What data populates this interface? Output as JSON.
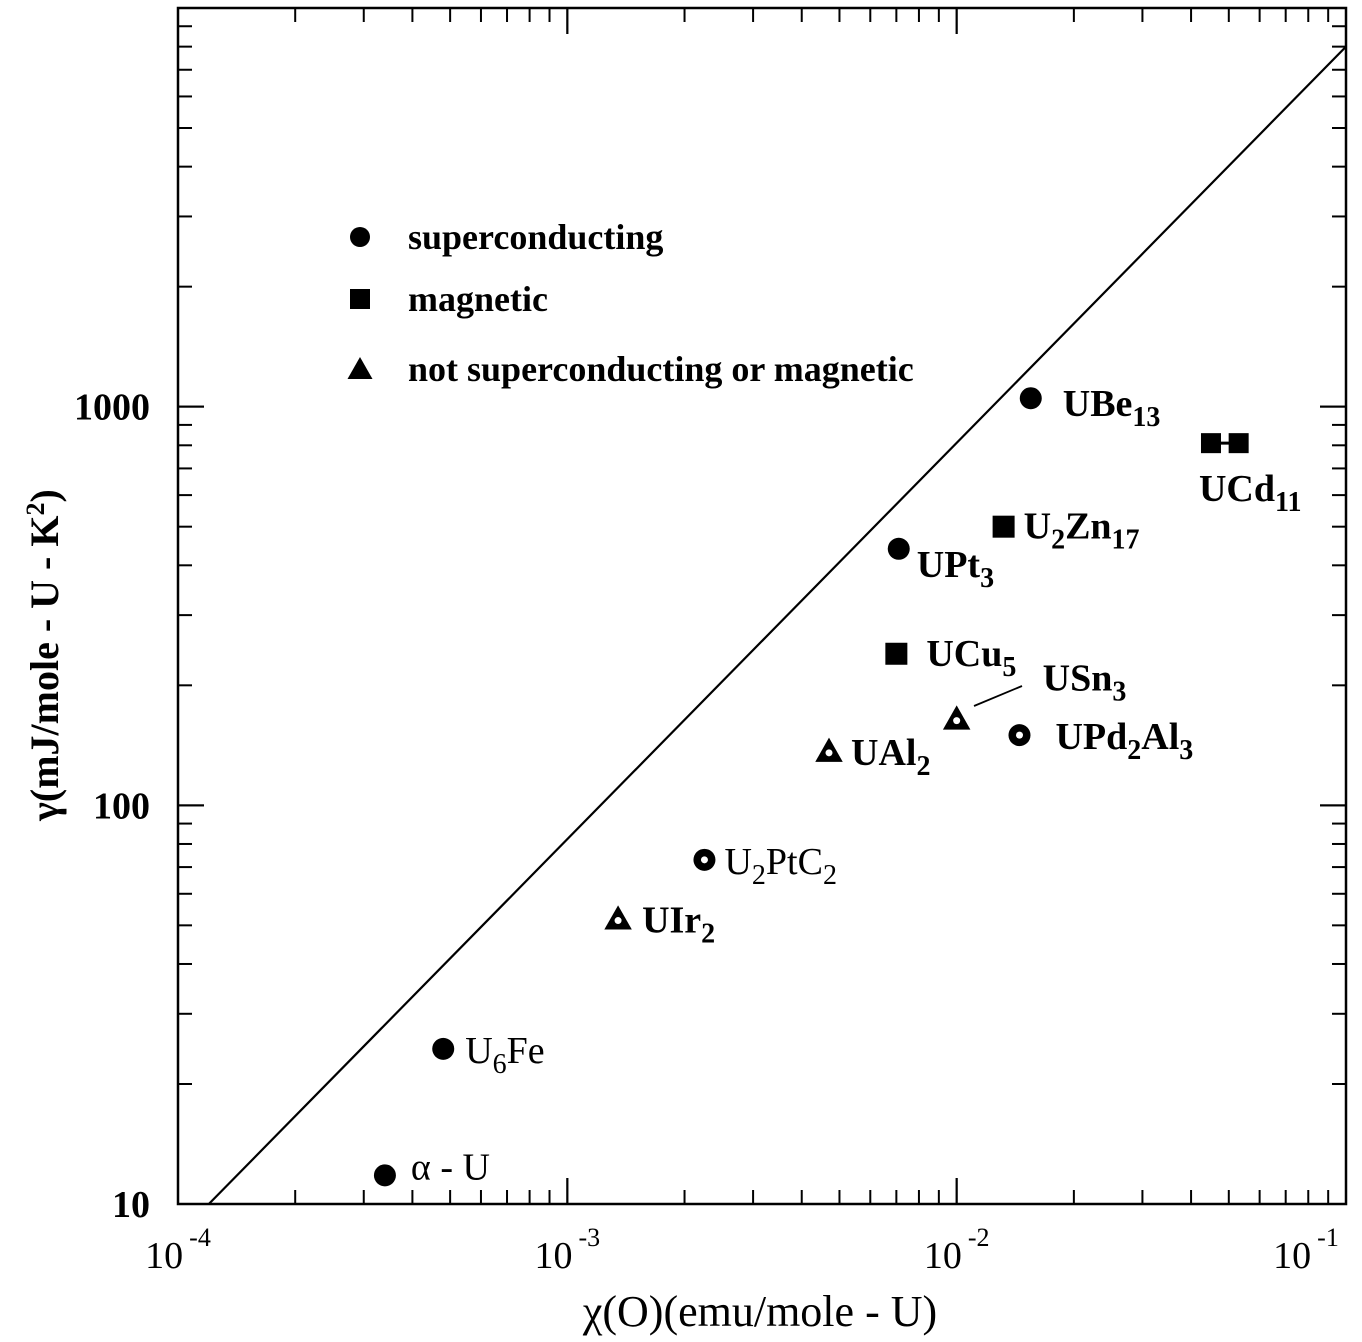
{
  "chart_data": {
    "type": "scatter",
    "title": "",
    "xlabel": "χ(O)(emu/mole - U)",
    "ylabel": "γ(mJ/mole - U - K²)",
    "xscale": "log",
    "yscale": "log",
    "xlim": [
      0.0001,
      0.1
    ],
    "ylim": [
      10,
      10000
    ],
    "x_tick_labels": [
      {
        "value": 0.0001,
        "base": "10",
        "exp": "-4"
      },
      {
        "value": 0.001,
        "base": "10",
        "exp": "-3"
      },
      {
        "value": 0.01,
        "base": "10",
        "exp": "-2"
      },
      {
        "value": 0.1,
        "base": "10",
        "exp": "-1"
      }
    ],
    "y_tick_labels": [
      {
        "value": 10,
        "label": "10"
      },
      {
        "value": 100,
        "label": "100"
      },
      {
        "value": 1000,
        "label": "1000"
      }
    ],
    "grid": false,
    "legend_position": "upper-left",
    "legend": [
      {
        "marker": "circle",
        "label": "superconducting"
      },
      {
        "marker": "square",
        "label": "magnetic"
      },
      {
        "marker": "triangle",
        "label": "not superconducting or magnetic"
      }
    ],
    "reference_line": {
      "x": [
        0.00012,
        0.1
      ],
      "y": [
        10,
        8000
      ]
    },
    "points": [
      {
        "name": "α - U",
        "main": "α - U",
        "sub": "",
        "tail": "",
        "sub2": "",
        "x": 0.00034,
        "y": 11.8,
        "marker": "circle"
      },
      {
        "name": "U6Fe",
        "main": "U",
        "sub": "6",
        "tail": "Fe",
        "sub2": "",
        "x": 0.00048,
        "y": 24.5,
        "marker": "circle"
      },
      {
        "name": "UIr2",
        "main": "UIr",
        "sub": "2",
        "tail": "",
        "sub2": "",
        "x": 0.00135,
        "y": 52,
        "marker": "triangle"
      },
      {
        "name": "U2PtC2",
        "main": "U",
        "sub": "2",
        "tail": "PtC",
        "sub2": "2",
        "x": 0.00225,
        "y": 73,
        "marker": "circle"
      },
      {
        "name": "UAl2",
        "main": "UAl",
        "sub": "2",
        "tail": "",
        "sub2": "",
        "x": 0.0047,
        "y": 137,
        "marker": "triangle"
      },
      {
        "name": "USn3",
        "main": "USn",
        "sub": "3",
        "tail": "",
        "sub2": "",
        "x": 0.01,
        "y": 165,
        "marker": "triangle"
      },
      {
        "name": "UCu5",
        "main": "UCu",
        "sub": "5",
        "tail": "",
        "sub2": "",
        "x": 0.007,
        "y": 240,
        "marker": "square"
      },
      {
        "name": "UPd2Al3",
        "main": "UPd",
        "sub": "2",
        "tail": "Al",
        "sub2": "3",
        "x": 0.0145,
        "y": 150,
        "marker": "circle"
      },
      {
        "name": "UPt3",
        "main": "UPt",
        "sub": "3",
        "tail": "",
        "sub2": "",
        "x": 0.0071,
        "y": 440,
        "marker": "circle"
      },
      {
        "name": "U2Zn17",
        "main": "U",
        "sub": "2",
        "tail": "Zn",
        "sub2": "17",
        "x": 0.0132,
        "y": 500,
        "marker": "square"
      },
      {
        "name": "UBe13",
        "main": "UBe",
        "sub": "13",
        "tail": "",
        "sub2": "",
        "x": 0.0155,
        "y": 1050,
        "marker": "circle"
      },
      {
        "name": "UCd11",
        "main": "UCd",
        "sub": "11",
        "tail": "",
        "sub2": "",
        "x": 0.045,
        "x2": 0.053,
        "y": 810,
        "marker": "square"
      }
    ]
  }
}
